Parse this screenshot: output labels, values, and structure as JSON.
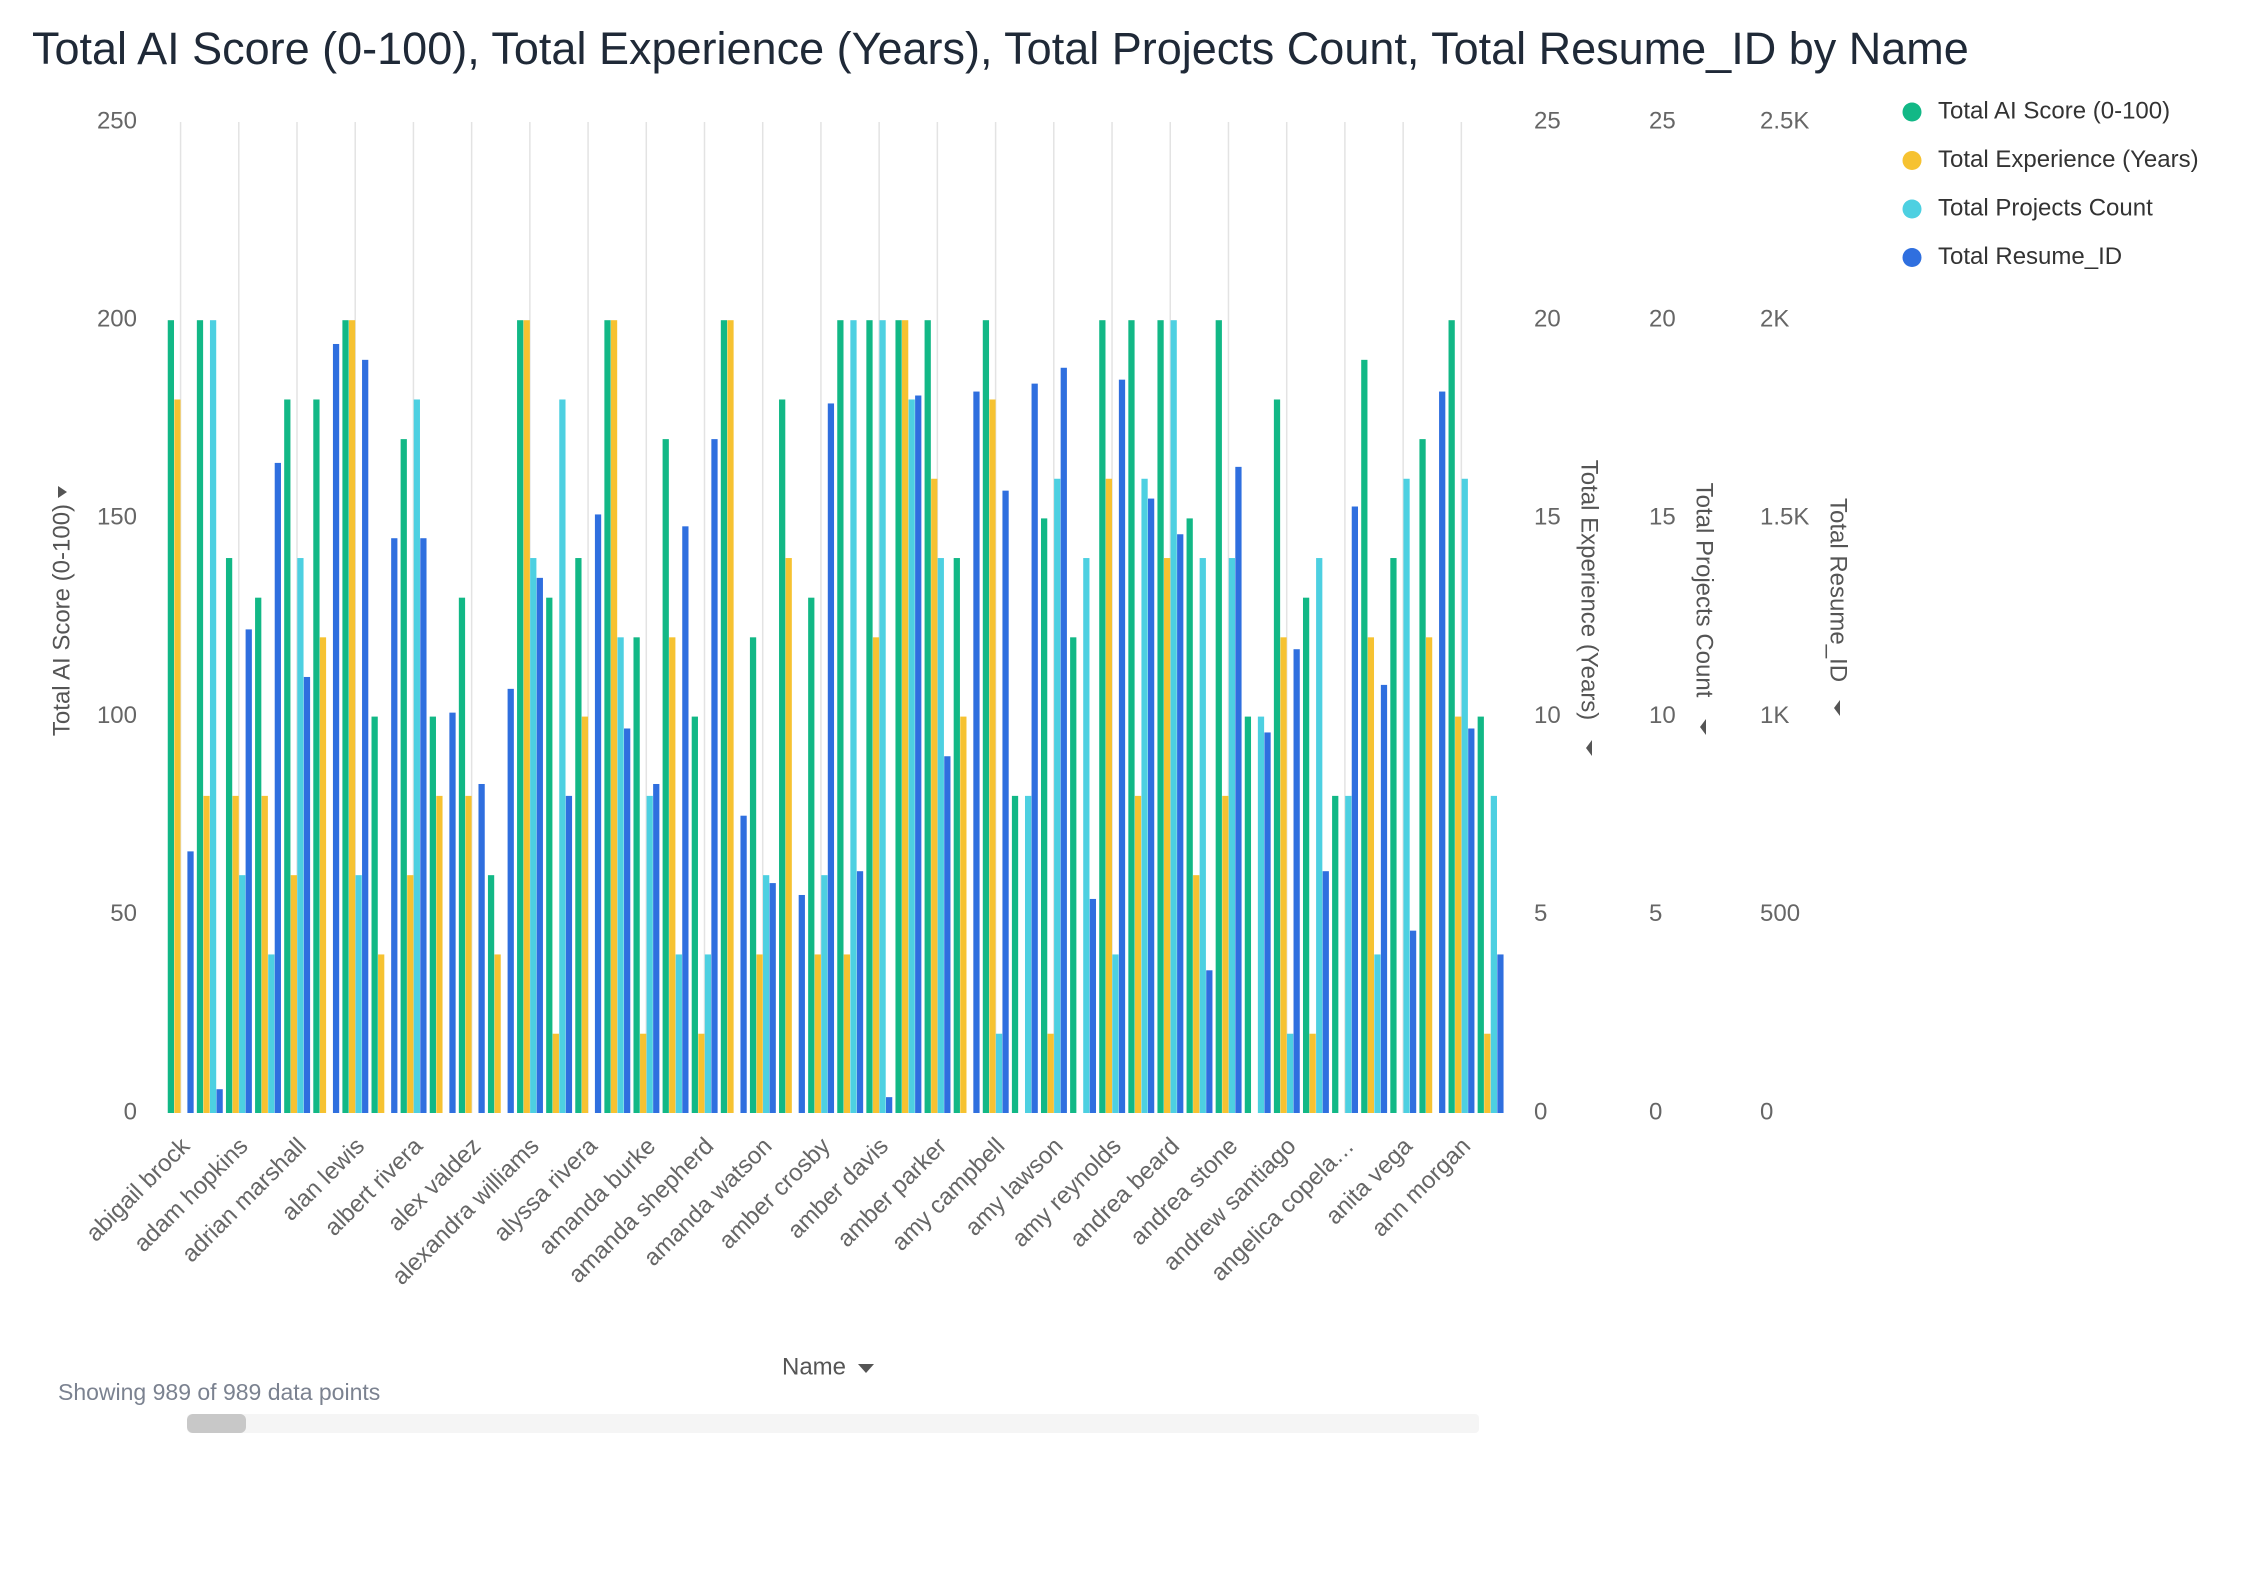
{
  "chart_data": {
    "type": "bar",
    "title": "Total AI Score (0-100), Total Experience (Years), Total Projects Count, Total Resume_ID by Name",
    "xlabel": "Name",
    "ylabel": "Total AI Score (0-100)",
    "y2label": "Total Experience (Years)",
    "y3label": "Total Projects Count",
    "y4label": "Total Resume_ID",
    "annotation": "Showing 989 of 989 data points",
    "legend": "right",
    "categories": [
      "abigail brock",
      null,
      "adam hopkins",
      null,
      "adrian marshall",
      null,
      "alan lewis",
      null,
      "albert rivera",
      null,
      "alex valdez",
      null,
      "alexandra williams",
      null,
      "alyssa rivera",
      null,
      "amanda burke",
      null,
      "amanda shepherd",
      null,
      "amanda watson",
      null,
      "amber crosby",
      null,
      "amber davis",
      null,
      "amber parker",
      null,
      "amy campbell",
      null,
      "amy lawson",
      null,
      "amy reynolds",
      null,
      "andrea beard",
      null,
      "andrea stone",
      null,
      "andrew santiago",
      null,
      "angelica copela…",
      null,
      "anita vega",
      null,
      "ann morgan",
      null
    ],
    "series": [
      {
        "name": "Total AI Score (0-100)",
        "color": "#12b886",
        "axis": "y",
        "values": [
          200,
          200,
          140,
          130,
          180,
          180,
          200,
          100,
          170,
          100,
          130,
          60,
          200,
          130,
          140,
          200,
          120,
          170,
          100,
          200,
          120,
          180,
          130,
          200,
          200,
          200,
          200,
          140,
          200,
          80,
          150,
          120,
          200,
          200,
          200,
          150,
          200,
          100,
          180,
          130,
          80,
          190,
          140,
          170,
          200,
          100
        ]
      },
      {
        "name": "Total Experience (Years)",
        "color": "#f6c231",
        "axis": "y2",
        "values": [
          18,
          8,
          8,
          8,
          6,
          12,
          20,
          4,
          6,
          8,
          8,
          4,
          20,
          2,
          10,
          20,
          2,
          12,
          2,
          20,
          4,
          14,
          4,
          4,
          12,
          20,
          16,
          10,
          18,
          0,
          2,
          0,
          16,
          8,
          14,
          6,
          8,
          0,
          12,
          2,
          0,
          12,
          0,
          12,
          10,
          2
        ]
      },
      {
        "name": "Total Projects Count",
        "color": "#4dd0e1",
        "axis": "y3",
        "values": [
          0,
          20,
          6,
          4,
          14,
          0,
          6,
          0,
          18,
          0,
          0,
          0,
          14,
          18,
          0,
          12,
          8,
          4,
          4,
          0,
          6,
          0,
          6,
          20,
          20,
          18,
          14,
          0,
          2,
          8,
          16,
          14,
          4,
          16,
          20,
          14,
          14,
          10,
          2,
          14,
          8,
          4,
          16,
          0,
          16,
          8
        ]
      },
      {
        "name": "Total Resume_ID",
        "color": "#2f6fdf",
        "axis": "y4",
        "values": [
          660,
          60,
          1220,
          1640,
          1100,
          1940,
          1900,
          1450,
          1450,
          1010,
          830,
          1070,
          1350,
          800,
          1510,
          970,
          830,
          1480,
          1700,
          750,
          580,
          550,
          1790,
          610,
          40,
          1810,
          900,
          1820,
          1570,
          1840,
          1880,
          540,
          1850,
          1550,
          1460,
          360,
          1630,
          960,
          1170,
          610,
          1530,
          1080,
          460,
          1820,
          970,
          400
        ]
      }
    ],
    "ylim": [
      0,
      250
    ],
    "yticks": [
      0,
      50,
      100,
      150,
      200,
      250
    ],
    "y2lim": [
      0,
      25
    ],
    "y2ticks": [
      0,
      5,
      10,
      15,
      20,
      25
    ],
    "y3lim": [
      0,
      25
    ],
    "y3ticks": [
      0,
      5,
      10,
      15,
      20,
      25
    ],
    "y4lim": [
      0,
      2500
    ],
    "y4ticks": [
      0,
      500,
      {
        "value": 1000,
        "label": "1K"
      },
      {
        "value": 1500,
        "label": "1.5K"
      },
      {
        "value": 2000,
        "label": "2K"
      },
      {
        "value": 2500,
        "label": "2.5K"
      }
    ]
  }
}
